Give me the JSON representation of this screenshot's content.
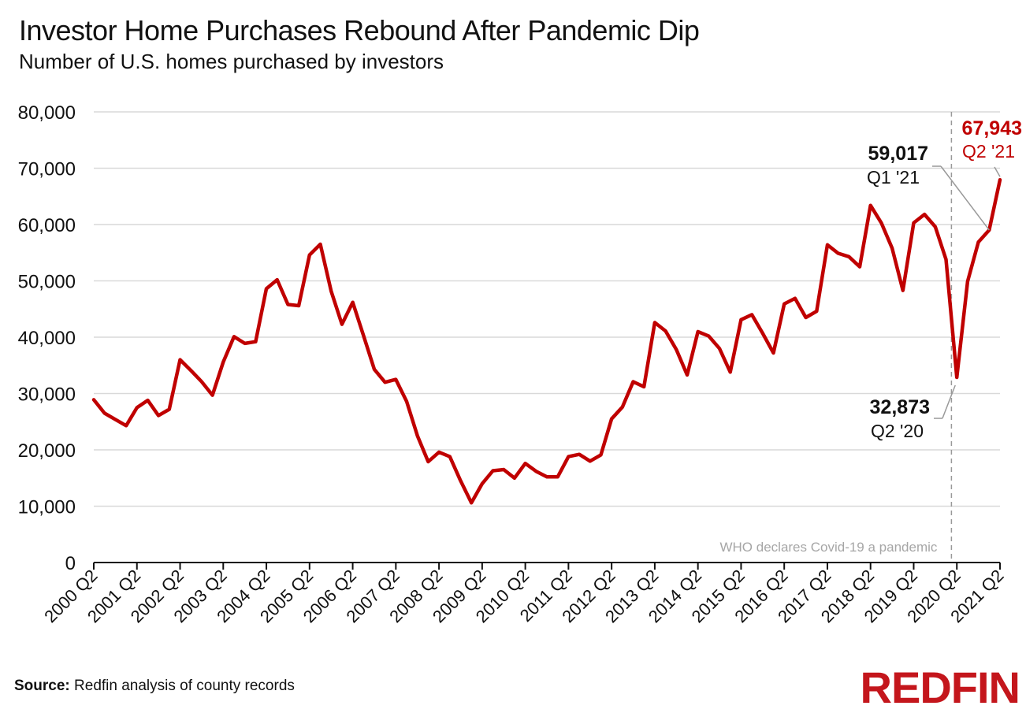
{
  "header": {
    "title": "Investor Home Purchases Rebound After Pandemic Dip",
    "subtitle": "Number of U.S. homes purchased by investors"
  },
  "footer": {
    "source_label": "Source:",
    "source_text": "Redfin analysis of county records",
    "logo_text": "REDFIN"
  },
  "colors": {
    "line": "#c00000",
    "grid": "#d9d9d9",
    "annotation": "#999999"
  },
  "chart_data": {
    "type": "line",
    "title": "Investor Home Purchases Rebound After Pandemic Dip",
    "subtitle": "Number of U.S. homes purchased by investors",
    "xlabel": "",
    "ylabel": "",
    "ylim": [
      0,
      80000
    ],
    "yticks": [
      0,
      10000,
      20000,
      30000,
      40000,
      50000,
      60000,
      70000,
      80000
    ],
    "ytick_labels": [
      "0",
      "10,000",
      "20,000",
      "30,000",
      "40,000",
      "50,000",
      "60,000",
      "70,000",
      "80,000"
    ],
    "grid": true,
    "xtick_labels": [
      "2000 Q2",
      "2001 Q2",
      "2002 Q2",
      "2003 Q2",
      "2004 Q2",
      "2005 Q2",
      "2006 Q2",
      "2007 Q2",
      "2008 Q2",
      "2009 Q2",
      "2010 Q2",
      "2011 Q2",
      "2012 Q2",
      "2013 Q2",
      "2014 Q2",
      "2015 Q2",
      "2016 Q2",
      "2017 Q2",
      "2018 Q2",
      "2019 Q2",
      "2020 Q2",
      "2021 Q2"
    ],
    "series": [
      {
        "name": "Investor home purchases",
        "values": [
          28900,
          26500,
          25400,
          24300,
          27500,
          28800,
          26100,
          27200,
          36000,
          34100,
          32100,
          29700,
          35600,
          40100,
          38900,
          39200,
          48600,
          50200,
          45800,
          45600,
          54600,
          56500,
          48200,
          42300,
          46200,
          40300,
          34300,
          32000,
          32500,
          28600,
          22500,
          17900,
          19600,
          18800,
          14500,
          10600,
          14000,
          16300,
          16500,
          15000,
          17600,
          16200,
          15200,
          15200,
          18800,
          19200,
          18000,
          19100,
          25500,
          27600,
          32100,
          31200,
          42600,
          41100,
          37800,
          33300,
          41000,
          40200,
          38000,
          33800,
          43100,
          44000,
          40700,
          37200,
          45900,
          46900,
          43500,
          44600,
          56400,
          54900,
          54300,
          52500,
          63400,
          60300,
          55800,
          48300,
          60300,
          61800,
          59600,
          53800,
          32873,
          49900,
          56900,
          59017,
          67943
        ]
      }
    ],
    "annotations": [
      {
        "value": "67,943",
        "label": "Q2 '21"
      },
      {
        "value": "59,017",
        "label": "Q1 '21"
      },
      {
        "value": "32,873",
        "label": "Q2 '20"
      }
    ],
    "event_line": {
      "label": "WHO declares Covid-19 a pandemic",
      "quarter_index": 79.5
    }
  }
}
